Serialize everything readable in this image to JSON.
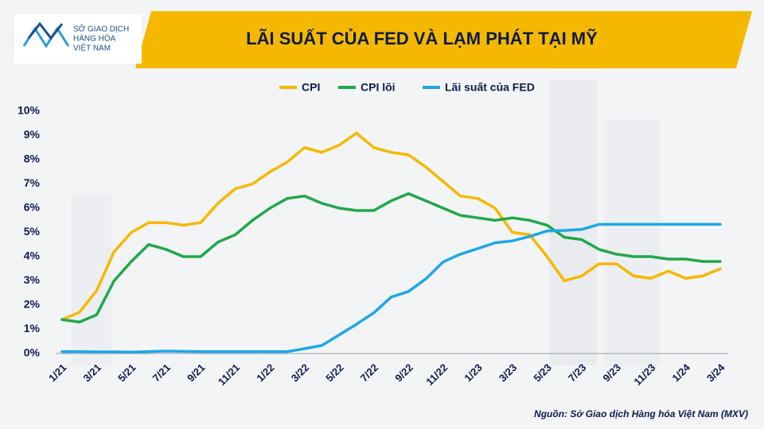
{
  "logo": [
    "SỞ GIAO DỊCH",
    "HÀNG HÓA",
    "VIỆT NAM"
  ],
  "chart_data": {
    "type": "line",
    "title": "LÃI SUẤT CỦA FED VÀ LẠM PHÁT TẠI MỸ",
    "categories": [
      "1/21",
      null,
      "3/21",
      null,
      "5/21",
      null,
      "7/21",
      null,
      "9/21",
      null,
      "11/21",
      null,
      "1/22",
      null,
      "3/22",
      null,
      "5/22",
      null,
      "7/22",
      null,
      "9/22",
      null,
      "11/22",
      null,
      "1/23",
      null,
      "3/23",
      null,
      "5/23",
      null,
      "7/23",
      null,
      "9/23",
      null,
      "11/23",
      null,
      "1/24",
      null,
      "3/24"
    ],
    "series": [
      {
        "name": "CPI",
        "color": "#f5b800",
        "values": [
          1.4,
          1.7,
          2.6,
          4.2,
          5.0,
          5.4,
          5.4,
          5.3,
          5.4,
          6.2,
          6.8,
          7.0,
          7.5,
          7.9,
          8.5,
          8.3,
          8.6,
          9.1,
          8.5,
          8.3,
          8.2,
          7.7,
          7.1,
          6.5,
          6.4,
          6.0,
          5.0,
          4.9,
          4.0,
          3.0,
          3.2,
          3.7,
          3.7,
          3.2,
          3.1,
          3.4,
          3.1,
          3.2,
          3.5
        ]
      },
      {
        "name": "CPI lõi",
        "color": "#1fa84a",
        "values": [
          1.4,
          1.3,
          1.6,
          3.0,
          3.8,
          4.5,
          4.3,
          4.0,
          4.0,
          4.6,
          4.9,
          5.5,
          6.0,
          6.4,
          6.5,
          6.2,
          6.0,
          5.9,
          5.9,
          6.3,
          6.6,
          6.3,
          6.0,
          5.7,
          5.6,
          5.5,
          5.6,
          5.5,
          5.3,
          4.8,
          4.7,
          4.3,
          4.1,
          4.0,
          4.0,
          3.9,
          3.9,
          3.8,
          3.8
        ]
      },
      {
        "name": "Lãi suất của FED",
        "color": "#1ea7e8",
        "values": [
          0.08,
          0.08,
          0.07,
          0.07,
          0.06,
          0.08,
          0.1,
          0.09,
          0.08,
          0.08,
          0.08,
          0.08,
          0.08,
          0.08,
          0.2,
          0.33,
          0.77,
          1.21,
          1.68,
          2.33,
          2.56,
          3.08,
          3.78,
          4.1,
          4.33,
          4.57,
          4.65,
          4.83,
          5.06,
          5.08,
          5.12,
          5.33,
          5.33,
          5.33,
          5.33,
          5.33,
          5.33,
          5.33,
          5.33
        ]
      }
    ],
    "ylim": [
      0,
      10
    ],
    "yticks": [
      {
        "value": 0,
        "label": "0%"
      },
      {
        "value": 1,
        "label": "1%"
      },
      {
        "value": 2,
        "label": "2%"
      },
      {
        "value": 3,
        "label": "3%"
      },
      {
        "value": 4,
        "label": "4%"
      },
      {
        "value": 5,
        "label": "5%"
      },
      {
        "value": 6,
        "label": "6%"
      },
      {
        "value": 7,
        "label": "7%"
      },
      {
        "value": 8,
        "label": "8%"
      },
      {
        "value": 9,
        "label": "9%"
      },
      {
        "value": 10,
        "label": "10%"
      }
    ],
    "legend": "top",
    "source": "Nguồn: Sở Giao dịch Hàng hóa Việt Nam (MXV)"
  }
}
